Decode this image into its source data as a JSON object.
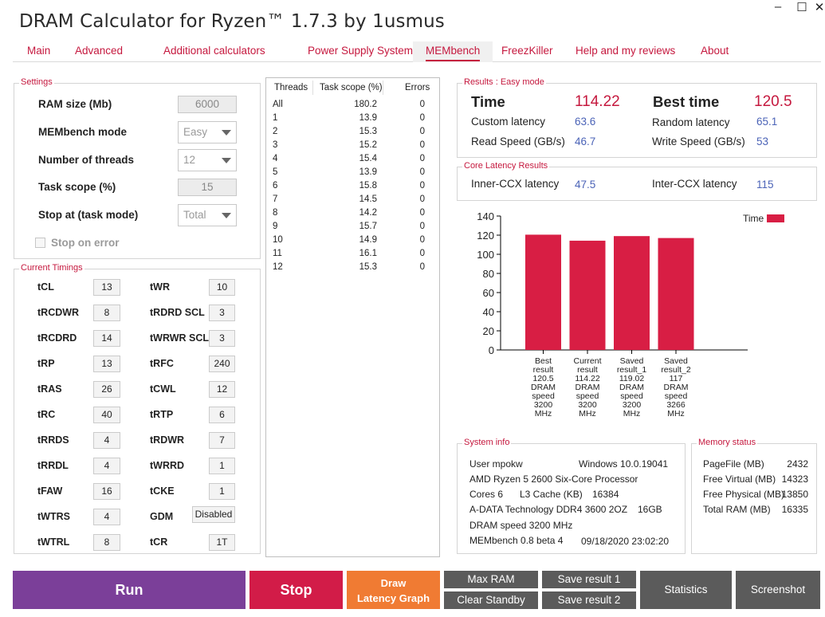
{
  "app": {
    "title": "DRAM Calculator for Ryzen™ 1.7.3 by 1usmus"
  },
  "window": {
    "minimize": "–",
    "maximize": "☐",
    "close": "✕"
  },
  "tabs": [
    "Main",
    "Advanced",
    "Additional calculators",
    "Power Supply System",
    "MEMbench",
    "FreezKiller",
    "Help and my reviews",
    "About"
  ],
  "active_tab": "MEMbench",
  "settings": {
    "title": "Settings",
    "ram_size_label": "RAM size (Mb)",
    "ram_size_value": "6000",
    "mode_label": "MEMbench mode",
    "mode_value": "Easy",
    "threads_label": "Number of threads",
    "threads_value": "12",
    "task_scope_label": "Task scope (%)",
    "task_scope_value": "15",
    "stop_at_label": "Stop at (task mode)",
    "stop_at_value": "Total",
    "stop_on_error_label": "Stop on error"
  },
  "timings": {
    "title": "Current Timings",
    "left": [
      {
        "label": "tCL",
        "value": "13"
      },
      {
        "label": "tRCDWR",
        "value": "8"
      },
      {
        "label": "tRCDRD",
        "value": "14"
      },
      {
        "label": "tRP",
        "value": "13"
      },
      {
        "label": "tRAS",
        "value": "26"
      },
      {
        "label": "tRC",
        "value": "40"
      },
      {
        "label": "tRRDS",
        "value": "4"
      },
      {
        "label": "tRRDL",
        "value": "4"
      },
      {
        "label": "tFAW",
        "value": "16"
      },
      {
        "label": "tWTRS",
        "value": "4"
      },
      {
        "label": "tWTRL",
        "value": "8"
      }
    ],
    "right": [
      {
        "label": "tWR",
        "value": "10"
      },
      {
        "label": "tRDRD SCL",
        "value": "3"
      },
      {
        "label": "tWRWR SCL",
        "value": "3"
      },
      {
        "label": "tRFC",
        "value": "240"
      },
      {
        "label": "tCWL",
        "value": "12"
      },
      {
        "label": "tRTP",
        "value": "6"
      },
      {
        "label": "tRDWR",
        "value": "7"
      },
      {
        "label": "tWRRD",
        "value": "1"
      },
      {
        "label": "tCKE",
        "value": "1"
      },
      {
        "label": "GDM",
        "value": "Disabled"
      },
      {
        "label": "tCR",
        "value": "1T"
      }
    ]
  },
  "threads_table": {
    "headers": [
      "Threads",
      "Task scope (%)",
      "Errors"
    ],
    "rows": [
      [
        "All",
        "180.2",
        "0"
      ],
      [
        "1",
        "13.9",
        "0"
      ],
      [
        "2",
        "15.3",
        "0"
      ],
      [
        "3",
        "15.2",
        "0"
      ],
      [
        "4",
        "15.4",
        "0"
      ],
      [
        "5",
        "13.9",
        "0"
      ],
      [
        "6",
        "15.8",
        "0"
      ],
      [
        "7",
        "14.5",
        "0"
      ],
      [
        "8",
        "14.2",
        "0"
      ],
      [
        "9",
        "15.7",
        "0"
      ],
      [
        "10",
        "14.9",
        "0"
      ],
      [
        "11",
        "16.1",
        "0"
      ],
      [
        "12",
        "15.3",
        "0"
      ]
    ]
  },
  "results": {
    "title": "Results : Easy mode",
    "time_label": "Time",
    "time_value": "114.22",
    "best_label": "Best time",
    "best_value": "120.5",
    "custom_latency_label": "Custom latency",
    "custom_latency_value": "63.6",
    "random_latency_label": "Random latency",
    "random_latency_value": "65.1",
    "read_label": "Read Speed (GB/s)",
    "read_value": "46.7",
    "write_label": "Write Speed (GB/s)",
    "write_value": "53"
  },
  "core_latency": {
    "title": "Core Latency Results",
    "inner_label": "Inner-CCX latency",
    "inner_value": "47.5",
    "inter_label": "Inter-CCX latency",
    "inter_value": "115"
  },
  "chart_data": {
    "type": "bar",
    "categories": [
      [
        "Best",
        "result",
        "120.5",
        "DRAM",
        "speed",
        "3200",
        "MHz"
      ],
      [
        "Current",
        "result",
        "114.22",
        "DRAM",
        "speed",
        "3200",
        "MHz"
      ],
      [
        "Saved",
        "result_1",
        "119.02",
        "DRAM",
        "speed",
        "3200",
        "MHz"
      ],
      [
        "Saved",
        "result_2",
        "117",
        "DRAM",
        "speed",
        "3266",
        "MHz"
      ]
    ],
    "series": [
      {
        "name": "Time",
        "values": [
          120.5,
          114.22,
          119.02,
          117
        ],
        "color": "#d81e44"
      }
    ],
    "ylim": [
      0,
      140
    ],
    "yticks": [
      "0",
      "20",
      "40",
      "60",
      "80",
      "100",
      "120",
      "140"
    ],
    "grid": false,
    "legend": "top-right"
  },
  "system_info": {
    "title": "System info",
    "user": "User mpokw",
    "os": "Windows 10.0.19041",
    "cpu": "AMD Ryzen 5 2600 Six-Core Processor",
    "cores": "Cores 6",
    "l3": "L3 Cache (KB)",
    "l3_value": "16384",
    "ram": "A-DATA Technology DDR4 3600 2OZ",
    "ram_size": "16GB",
    "dram_speed": "DRAM speed 3200 MHz",
    "membench": "MEMbench 0.8 beta 4",
    "datetime": "09/18/2020 23:02:20"
  },
  "memory_status": {
    "title": "Memory status",
    "rows": [
      {
        "label": "PageFile (MB)",
        "value": "2432"
      },
      {
        "label": "Free Virtual (MB)",
        "value": "14323"
      },
      {
        "label": "Free Physical (MB)",
        "value": "13850"
      },
      {
        "label": "Total RAM (MB)",
        "value": "16335"
      }
    ]
  },
  "buttons": {
    "run": "Run",
    "stop": "Stop",
    "draw_1": "Draw",
    "draw_2": "Latency Graph",
    "max_ram": "Max RAM",
    "clear_standby": "Clear Standby",
    "save1": "Save result 1",
    "save2": "Save result 2",
    "statistics": "Statistics",
    "screenshot": "Screenshot"
  },
  "colors": {
    "accent": "#c5183e",
    "run": "#7b3f99",
    "stop": "#d21c48",
    "draw": "#f07b33",
    "gray_btn": "#5b5b5b",
    "value_blue": "#4b63b7"
  }
}
